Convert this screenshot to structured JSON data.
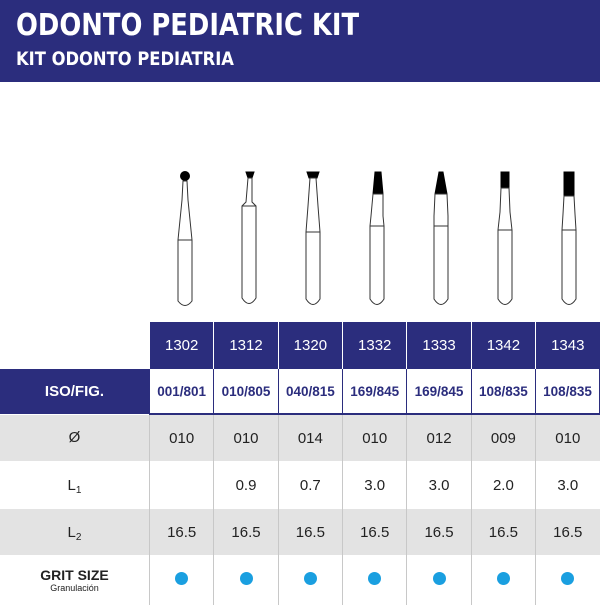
{
  "header": {
    "title": "ODONTO PEDIATRIC KIT",
    "subtitle": "KIT ODONTO PEDIATRIA",
    "background_color": "#2b2d7d"
  },
  "burs": [
    {
      "model": "1302",
      "head_shape": "round"
    },
    {
      "model": "1312",
      "head_shape": "inverted-cone"
    },
    {
      "model": "1320",
      "head_shape": "inverted-cone-wide"
    },
    {
      "model": "1332",
      "head_shape": "pear-tapered"
    },
    {
      "model": "1333",
      "head_shape": "pear-tapered-long"
    },
    {
      "model": "1342",
      "head_shape": "straight-fissure"
    },
    {
      "model": "1343",
      "head_shape": "straight-fissure-long"
    }
  ],
  "table": {
    "models": [
      "1302",
      "1312",
      "1320",
      "1332",
      "1333",
      "1342",
      "1343"
    ],
    "iso_label": "ISO/FIG.",
    "iso_values": [
      "001/801",
      "010/805",
      "040/815",
      "169/845",
      "169/845",
      "108/835",
      "108/835"
    ],
    "diameter": {
      "label": "Ø",
      "values": [
        "010",
        "010",
        "014",
        "010",
        "012",
        "009",
        "010"
      ]
    },
    "l1": {
      "label_main": "L",
      "label_sub": "1",
      "values": [
        "",
        "0.9",
        "0.7",
        "3.0",
        "3.0",
        "2.0",
        "3.0"
      ]
    },
    "l2": {
      "label_main": "L",
      "label_sub": "2",
      "values": [
        "16.5",
        "16.5",
        "16.5",
        "16.5",
        "16.5",
        "16.5",
        "16.5"
      ]
    },
    "grit": {
      "label": "GRIT SIZE",
      "sublabel": "Granulación",
      "values": [
        "blue",
        "blue",
        "blue",
        "blue",
        "blue",
        "blue",
        "blue"
      ],
      "dot_color": "#1a9fe0"
    }
  }
}
